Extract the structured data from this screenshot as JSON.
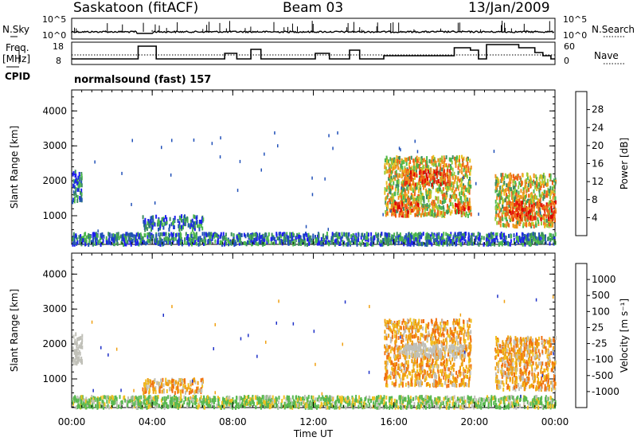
{
  "header": {
    "station": "Saskatoon (fitACF)",
    "beam": "Beam 03",
    "date": "13/Jan/2009"
  },
  "left_labels": {
    "nsky": "N.Sky",
    "freq": "Freq.",
    "freq_unit": "[MHz]",
    "cpid": "CPID"
  },
  "right_labels": {
    "nsearch": "N.Search",
    "nave": "Nave"
  },
  "cpid_text": "normalsound (fast) 157",
  "noise_panel": {
    "left_ticks": [
      "10^5",
      "10^0"
    ],
    "right_ticks": [
      "10^5",
      "10^0"
    ]
  },
  "freq_panel": {
    "left_ticks": [
      "18",
      "8"
    ],
    "right_ticks": [
      "60",
      "0"
    ]
  },
  "power_colorbar": {
    "label": "Power [dB]",
    "ticks": [
      "4",
      "8",
      "12",
      "16",
      "20",
      "24",
      "28"
    ],
    "colors": [
      "#1e1ef0",
      "#2050b8",
      "#3a8c60",
      "#4cb84c",
      "#98cc3c",
      "#e8c020",
      "#f0901c",
      "#f06018",
      "#e83010",
      "#e00000"
    ]
  },
  "velocity_colorbar": {
    "label": "Velocity [m s⁻¹]",
    "ticks": [
      "1000",
      "500",
      "100",
      "25",
      "-25",
      "-100",
      "-500",
      "-1000"
    ],
    "colors": [
      "#1e30c8",
      "#2a6ab8",
      "#3e9a78",
      "#58b850",
      "#c0c0b8",
      "#f0c020",
      "#f0a010",
      "#f07010",
      "#f04010",
      "#e80000"
    ]
  },
  "colors": {
    "axis": "#000000",
    "grid_dots": "#000000"
  },
  "chart_data": [
    {
      "type": "heatmap",
      "title": "Power",
      "ylabel": "Slant Range [km]",
      "xlabel": "Time UT",
      "x_ticks": [
        "00:00",
        "04:00",
        "08:00",
        "12:00",
        "16:00",
        "20:00",
        "00:00"
      ],
      "y_ticks": [
        "1000",
        "2000",
        "3000",
        "4000"
      ],
      "xlim_hours": [
        0,
        24
      ],
      "ylim_km": [
        180,
        4600
      ],
      "regions": [
        {
          "t": [
            0.0,
            0.5
          ],
          "r": [
            1400,
            2300
          ],
          "level": "weak"
        },
        {
          "t": [
            0.0,
            24.0
          ],
          "r": [
            180,
            500
          ],
          "level": "weak"
        },
        {
          "t": [
            3.5,
            6.5
          ],
          "r": [
            600,
            1000
          ],
          "level": "weak"
        },
        {
          "t": [
            15.5,
            19.8
          ],
          "r": [
            1000,
            2700
          ],
          "level": "mixed"
        },
        {
          "t": [
            16.5,
            18.8
          ],
          "r": [
            1900,
            2300
          ],
          "level": "strong"
        },
        {
          "t": [
            15.8,
            17.2
          ],
          "r": [
            1000,
            1400
          ],
          "level": "strong"
        },
        {
          "t": [
            19.0,
            19.8
          ],
          "r": [
            1100,
            1400
          ],
          "level": "strong"
        },
        {
          "t": [
            21.0,
            24.0
          ],
          "r": [
            700,
            2200
          ],
          "level": "mixed"
        },
        {
          "t": [
            21.5,
            24.0
          ],
          "r": [
            900,
            1400
          ],
          "level": "strong"
        }
      ]
    },
    {
      "type": "heatmap",
      "title": "Velocity",
      "ylabel": "Slant Range [km]",
      "xlabel": "Time UT",
      "x_ticks": [
        "00:00",
        "04:00",
        "08:00",
        "12:00",
        "16:00",
        "20:00",
        "00:00"
      ],
      "y_ticks": [
        "1000",
        "2000",
        "3000",
        "4000"
      ],
      "xlim_hours": [
        0,
        24
      ],
      "ylim_km": [
        180,
        4600
      ],
      "regions": [
        {
          "t": [
            0.0,
            0.5
          ],
          "r": [
            1400,
            2300
          ],
          "level": "ground"
        },
        {
          "t": [
            0.0,
            24.0
          ],
          "r": [
            180,
            500
          ],
          "level": "green"
        },
        {
          "t": [
            3.5,
            6.5
          ],
          "r": [
            600,
            1000
          ],
          "level": "orange"
        },
        {
          "t": [
            15.5,
            19.8
          ],
          "r": [
            800,
            2700
          ],
          "level": "orange"
        },
        {
          "t": [
            16.5,
            19.5
          ],
          "r": [
            1600,
            2000
          ],
          "level": "ground"
        },
        {
          "t": [
            21.0,
            24.0
          ],
          "r": [
            700,
            2200
          ],
          "level": "orange"
        }
      ]
    }
  ]
}
